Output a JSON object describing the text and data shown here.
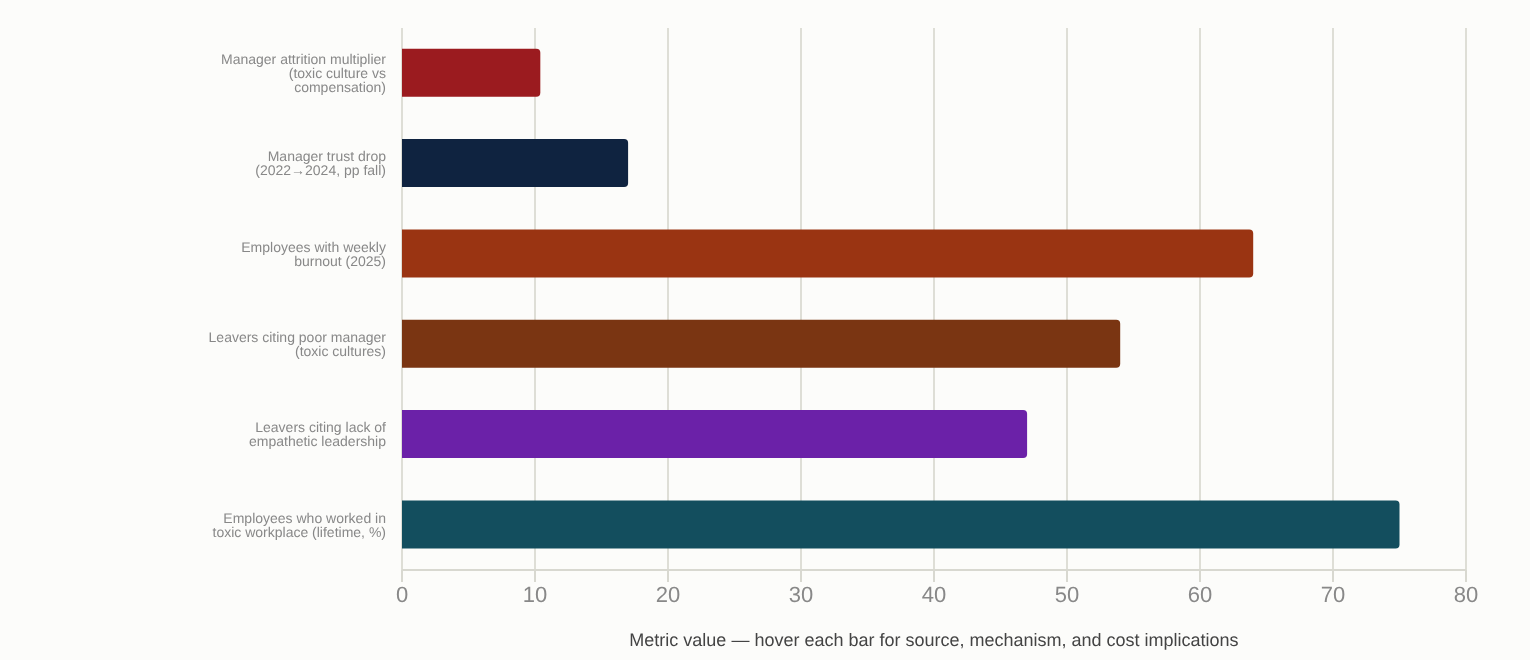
{
  "chart_data": {
    "type": "bar",
    "orientation": "horizontal",
    "xlabel": "Metric value — hover each bar for source, mechanism, and cost implications",
    "categories": [
      "Manager attrition multiplier (toxic culture vs compensation)",
      "Manager trust drop (2022→2024, pp fall)",
      "Employees with weekly burnout (2025)",
      "Leavers citing poor manager (toxic cultures)",
      "Leavers citing lack of empathetic leadership",
      "Employees who worked in toxic workplace (lifetime, %)"
    ],
    "values": [
      10.4,
      17,
      64,
      54,
      47,
      75
    ],
    "colors": [
      "#9b1b1f",
      "#0f2340",
      "#9a3412",
      "#7a3512",
      "#6b21a8",
      "#134e5e"
    ],
    "xlim": [
      0,
      80
    ],
    "xticks": [
      0,
      10,
      20,
      30,
      40,
      50,
      60,
      70,
      80
    ],
    "grid": "x"
  }
}
